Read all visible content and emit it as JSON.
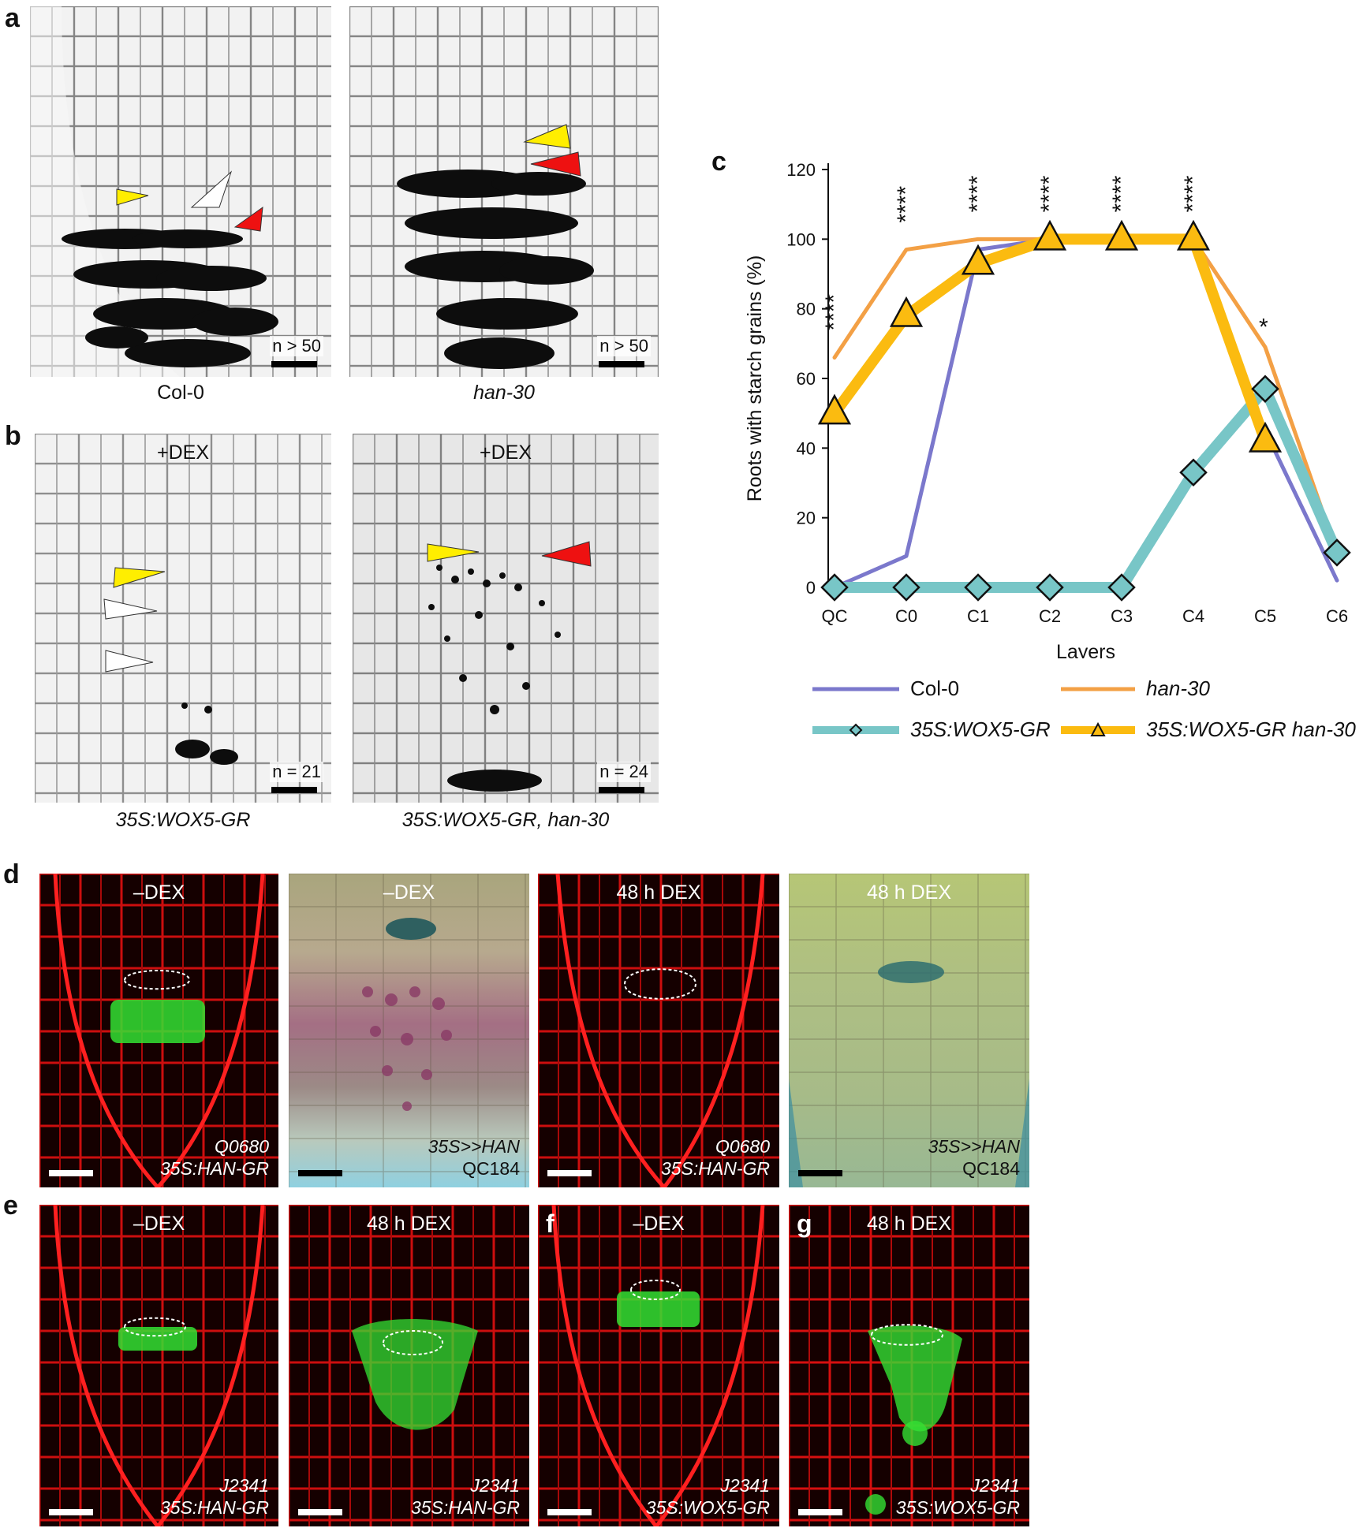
{
  "panels": {
    "a": {
      "letter": "a",
      "images": [
        {
          "caption": "Col-0",
          "n_text": "n > 50"
        },
        {
          "caption": "han-30",
          "n_text": "n > 50"
        }
      ]
    },
    "b": {
      "letter": "b",
      "images": [
        {
          "caption": "35S:WOX5-GR",
          "treatment": "+DEX",
          "n_text": "n = 21"
        },
        {
          "caption": "35S:WOX5-GR, han-30",
          "treatment": "+DEX",
          "n_text": "n = 24"
        }
      ]
    },
    "c": {
      "letter": "c"
    },
    "d": {
      "letter": "d",
      "images": [
        {
          "treatment": "–DEX",
          "line1": "Q0680",
          "line2": "35S:HAN-GR"
        },
        {
          "treatment": "–DEX",
          "line1": "35S>>HAN",
          "line2": "QC184"
        },
        {
          "treatment": "48 h DEX",
          "line1": "Q0680",
          "line2": "35S:HAN-GR"
        },
        {
          "treatment": "48 h DEX",
          "line1": "35S>>HAN",
          "line2": "QC184"
        }
      ]
    },
    "e": {
      "letter": "e",
      "images": [
        {
          "treatment": "–DEX",
          "line1": "J2341",
          "line2": "35S:HAN-GR"
        },
        {
          "treatment": "48 h DEX",
          "line1": "J2341",
          "line2": "35S:HAN-GR"
        }
      ]
    },
    "f": {
      "letter": "f",
      "images": [
        {
          "treatment": "–DEX",
          "line1": "J2341",
          "line2": "35S:WOX5-GR"
        }
      ]
    },
    "g": {
      "letter": "g",
      "images": [
        {
          "treatment": "48 h DEX",
          "line1": "J2341",
          "line2": "35S:WOX5-GR"
        }
      ]
    }
  },
  "chart_data": {
    "type": "line",
    "title": "",
    "xlabel": "Layers",
    "ylabel": "Roots with starch grains (%)",
    "categories": [
      "QC",
      "C0",
      "C1",
      "C2",
      "C3",
      "C4",
      "C5",
      "C6"
    ],
    "ylim": [
      0,
      120
    ],
    "yticks": [
      0,
      20,
      40,
      60,
      80,
      100,
      120
    ],
    "series": [
      {
        "name": "Col-0",
        "color": "#7b78cc",
        "marker": "none",
        "values": [
          0,
          9,
          97,
          100,
          100,
          100,
          45,
          2
        ]
      },
      {
        "name": "han-30",
        "color": "#f3a045",
        "marker": "none",
        "values": [
          66,
          97,
          100,
          100,
          100,
          100,
          69,
          10
        ]
      },
      {
        "name": "35S:WOX5-GR",
        "color": "#78c6c7",
        "marker": "diamond",
        "values": [
          0,
          0,
          0,
          0,
          0,
          33,
          57,
          10
        ]
      },
      {
        "name": "35S:WOX5-GR han-30",
        "color": "#fbbb10",
        "marker": "triangle",
        "values": [
          50,
          78,
          93,
          100,
          100,
          100,
          42,
          null
        ]
      }
    ],
    "significance": [
      "****",
      "****",
      "****",
      "****",
      "****",
      "****",
      "*",
      ""
    ],
    "legend": [
      {
        "name": "Col-0",
        "italic": false
      },
      {
        "name": "han-30",
        "italic": true
      },
      {
        "name": "35S:WOX5-GR",
        "italic": true
      },
      {
        "name": "35S:WOX5-GR han-30",
        "italic": true
      }
    ]
  }
}
